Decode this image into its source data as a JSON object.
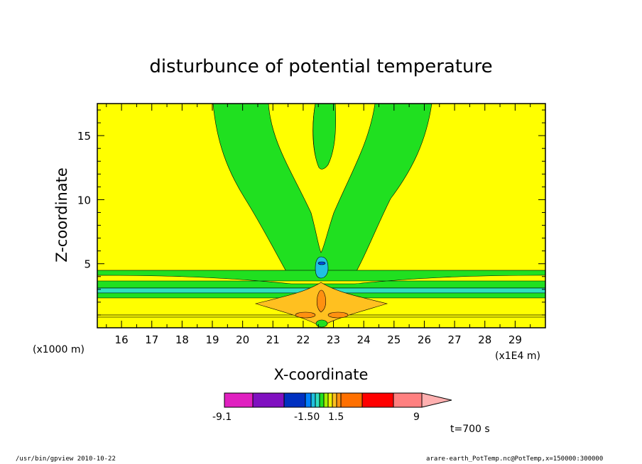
{
  "chart_data": {
    "type": "contour",
    "title": "disturbunce of potential temperature",
    "xlabel": "X-coordinate",
    "ylabel": "Z-coordinate",
    "x_unit_label": "(x1E4 m)",
    "y_unit_label": "(x1000 m)",
    "xlim": [
      15.2,
      30.0
    ],
    "ylim": [
      0.0,
      17.5
    ],
    "x_ticks": [
      16,
      17,
      18,
      19,
      20,
      21,
      22,
      23,
      24,
      25,
      26,
      27,
      28,
      29
    ],
    "y_ticks": [
      5,
      10,
      15
    ],
    "colorbar": {
      "colors": [
        "#e020c0",
        "#8010c0",
        "#0030c0",
        "#0080ff",
        "#20c0e0",
        "#30e0c0",
        "#20e020",
        "#a0f000",
        "#f0f000",
        "#ffc020",
        "#ff9010",
        "#ff7000",
        "#ff0000",
        "#ff8080",
        "#ffb0b0"
      ],
      "tick_labels": [
        "-9.1",
        "-1.50",
        "1.5",
        "9"
      ]
    },
    "time_label": "t=700 s",
    "dominant_colors": {
      "background": "#ffff00",
      "positive_band": "#20e020",
      "negative_band": "#30e0c0",
      "peak": "#ffa020"
    }
  },
  "footer": {
    "left": "/usr/bin/gpview   2010-10-22",
    "right": "arare-earth_PotTemp.nc@PotTemp,x=150000:300000"
  }
}
